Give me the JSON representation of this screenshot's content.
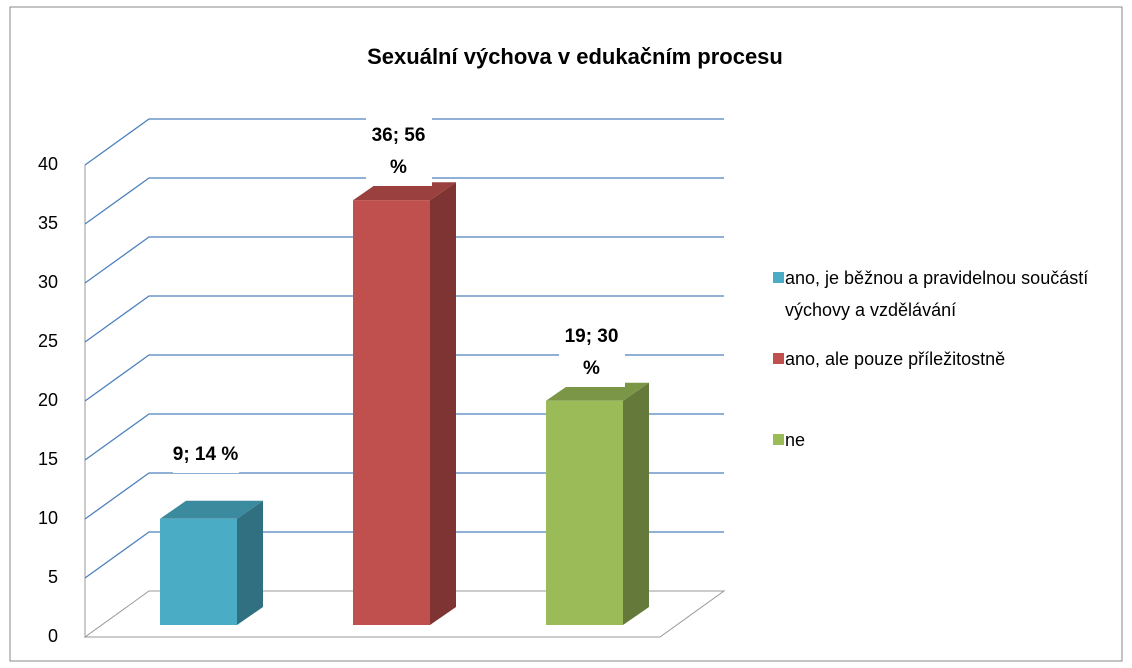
{
  "chart_data": {
    "type": "bar",
    "title": "Sexuální výchova v edukačním procesu",
    "series": [
      {
        "name": "ano, je běžnou a pravidelnou součástí výchovy a vzdělávání",
        "color": "#4bacc6",
        "values": [
          9
        ],
        "value_labels": [
          "9; 14 %"
        ]
      },
      {
        "name": "ano, ale pouze příležitostně",
        "color": "#c0504d",
        "values": [
          36
        ],
        "value_labels": [
          "36; 56 %"
        ]
      },
      {
        "name": "ne",
        "color": "#9bbb59",
        "values": [
          19
        ],
        "value_labels": [
          "19; 30 %"
        ]
      }
    ],
    "ylim": [
      0,
      40
    ],
    "yticks": [
      0,
      5,
      10,
      15,
      20,
      25,
      30,
      35,
      40
    ],
    "grid": true
  }
}
